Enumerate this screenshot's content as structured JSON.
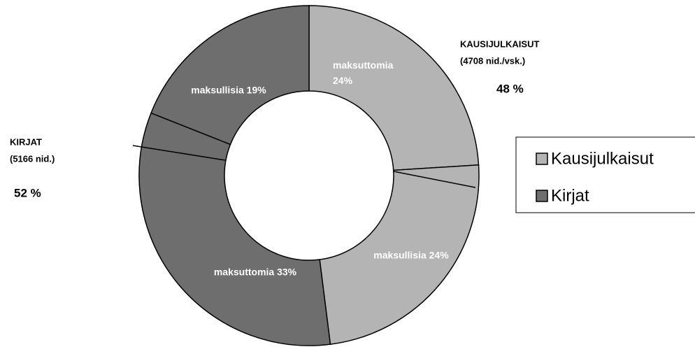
{
  "chart_data": {
    "type": "donut",
    "categories": [
      "maksuttomia",
      "maksullisia",
      "maksuttomia",
      "maksullisia"
    ],
    "values": [
      24,
      24,
      33,
      19
    ],
    "value_labels": [
      "maksuttomia 24%",
      "maksullisia 24%",
      "maksuttomia 33%",
      "maksullisia 19%"
    ],
    "colors": [
      "#b4b4b4",
      "#b4b4b4",
      "#6e6e6e",
      "#6e6e6e"
    ],
    "groups": [
      {
        "name": "KAUSIJULKAISUT",
        "note": "(4708 nid./vsk.)",
        "value": 48,
        "value_label": "48 %"
      },
      {
        "name": "KIRJAT",
        "note": "(5166 nid.)",
        "value": 52,
        "value_label": "52 %"
      }
    ],
    "series": [
      {
        "name": "Kausijulkaisut",
        "color": "#b4b4b4"
      },
      {
        "name": "Kirjat",
        "color": "#6e6e6e"
      }
    ]
  }
}
